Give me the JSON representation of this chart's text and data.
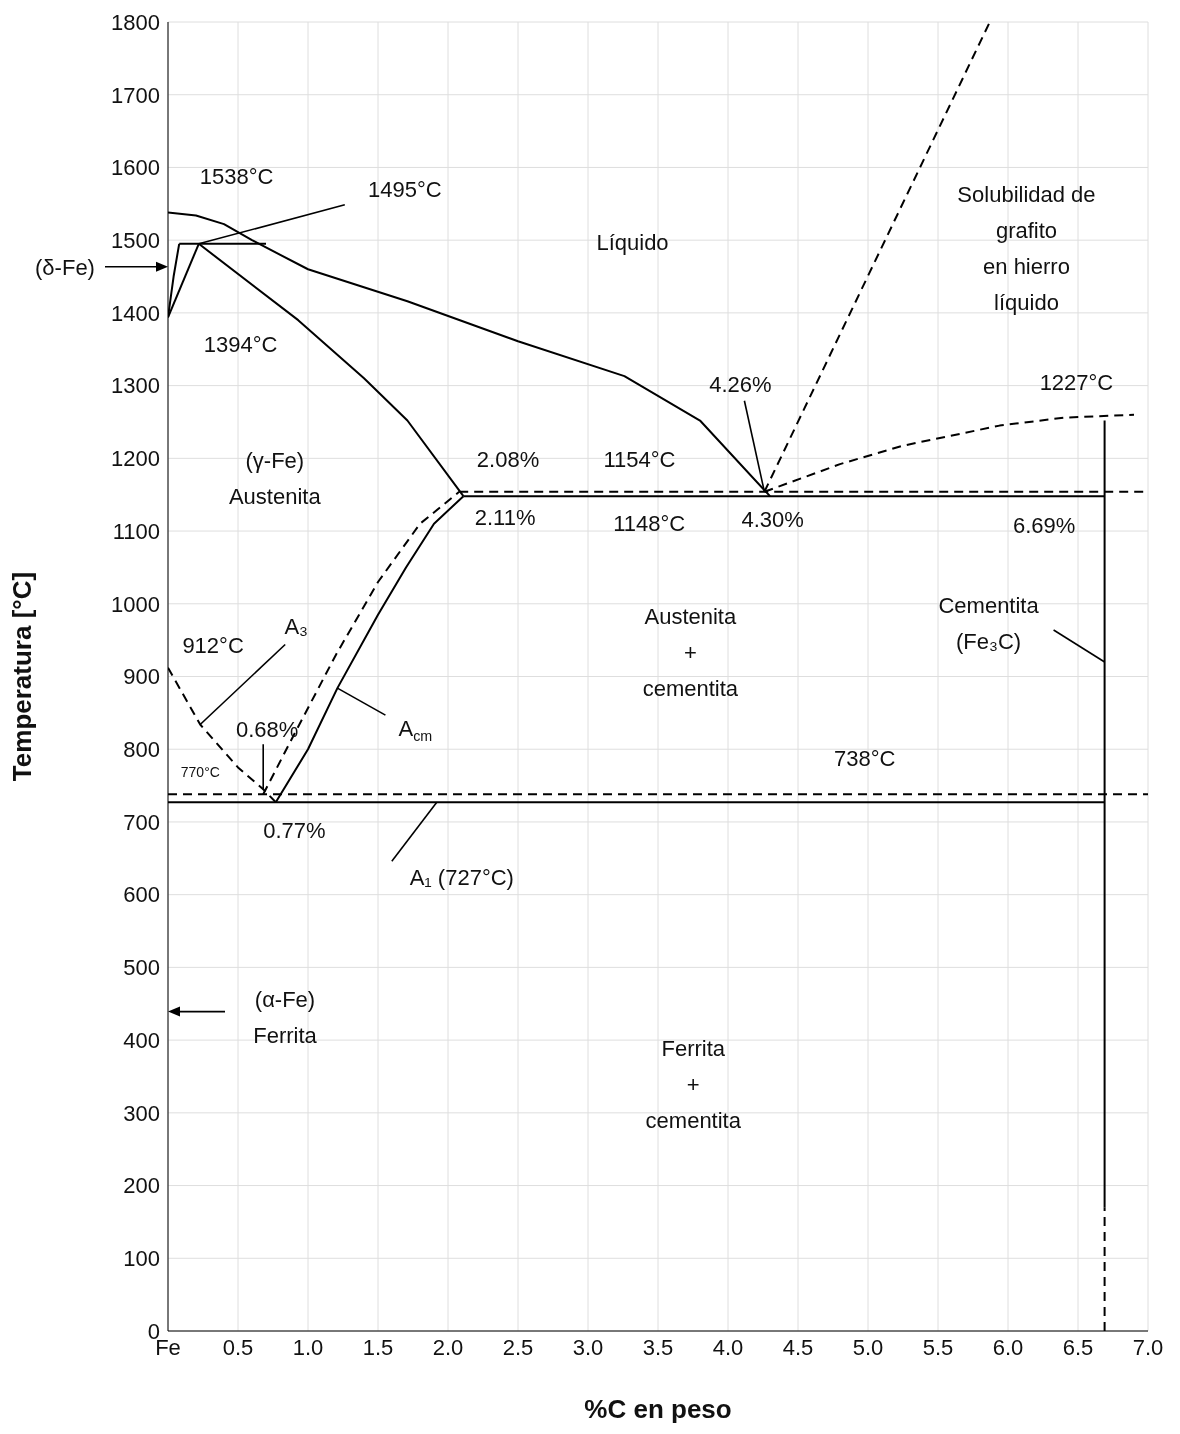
{
  "chart_data": {
    "type": "line",
    "xlabel": "%C en peso",
    "ylabel": "Temperatura [°C]",
    "xlim": [
      0,
      7
    ],
    "xticks": [
      {
        "value": 0,
        "label": "Fe"
      },
      0.5,
      {
        "value": 1,
        "label": "1.0"
      },
      1.5,
      {
        "value": 2,
        "label": "2.0"
      },
      2.5,
      {
        "value": 3,
        "label": "3.0"
      },
      3.5,
      {
        "value": 4,
        "label": "4.0"
      },
      4.5,
      {
        "value": 5,
        "label": "5.0"
      },
      5.5,
      {
        "value": 6,
        "label": "6.0"
      },
      6.5,
      {
        "value": 7,
        "label": "7.0"
      }
    ],
    "ylim": [
      0,
      1800
    ],
    "yticks": [
      0,
      100,
      200,
      300,
      400,
      500,
      600,
      700,
      800,
      900,
      1000,
      1100,
      1200,
      1300,
      1400,
      1500,
      1600,
      1700,
      1800
    ],
    "grid": true,
    "marker": "none",
    "series": [
      {
        "color": "#000000",
        "line_style": "solid",
        "x": [
          0,
          0.2,
          0.4,
          0.6,
          1.0,
          1.71,
          2.5,
          3.26,
          3.8,
          4.3
        ],
        "values": [
          1538,
          1534,
          1522,
          1500,
          1460,
          1416,
          1361,
          1313,
          1252,
          1148
        ]
      },
      {
        "color": "#000000",
        "line_style": "solid",
        "x": [
          0.08,
          0.7
        ],
        "values": [
          1495,
          1495
        ]
      },
      {
        "color": "#000000",
        "line_style": "solid",
        "x": [
          0,
          0.22
        ],
        "values": [
          1394,
          1495
        ]
      },
      {
        "color": "#000000",
        "line_style": "solid",
        "x": [
          0,
          0.04,
          0.08
        ],
        "values": [
          1394,
          1450,
          1495
        ]
      },
      {
        "color": "#000000",
        "line_style": "solid",
        "x": [
          0.22,
          0.93,
          1.4,
          1.71,
          2.11
        ],
        "values": [
          1495,
          1390,
          1310,
          1252,
          1148
        ]
      },
      {
        "color": "#000000",
        "line_style": "solid",
        "x": [
          2.11,
          6.69
        ],
        "values": [
          1148,
          1148
        ]
      },
      {
        "color": "#000000",
        "line_style": "dashed",
        "x": [
          2.08,
          7
        ],
        "values": [
          1154,
          1154
        ]
      },
      {
        "color": "#000000",
        "line_style": "solid",
        "x": [
          0.77,
          1.0,
          1.21,
          1.5,
          1.7,
          1.9,
          2.11
        ],
        "values": [
          727,
          800,
          884,
          985,
          1050,
          1110,
          1148
        ]
      },
      {
        "color": "#000000",
        "line_style": "dashed",
        "x": [
          0.68,
          0.9,
          1.2,
          1.5,
          1.8,
          2.08
        ],
        "values": [
          738,
          820,
          930,
          1030,
          1110,
          1154
        ]
      },
      {
        "color": "#000000",
        "line_style": "dashed",
        "x": [
          0,
          0.23,
          0.5,
          0.68,
          0.77
        ],
        "values": [
          912,
          834,
          775,
          745,
          727
        ]
      },
      {
        "color": "#000000",
        "line_style": "solid",
        "x": [
          0,
          6.69
        ],
        "values": [
          727,
          727
        ]
      },
      {
        "color": "#000000",
        "line_style": "dashed",
        "x": [
          0,
          7
        ],
        "values": [
          738,
          738
        ]
      },
      {
        "color": "#000000",
        "line_style": "solid",
        "x": [
          6.69,
          6.69
        ],
        "values": [
          170,
          1252
        ]
      },
      {
        "color": "#000000",
        "line_style": "dashed",
        "x": [
          6.69,
          6.69
        ],
        "values": [
          0,
          170
        ]
      },
      {
        "color": "#000000",
        "line_style": "dashed",
        "x": [
          4.26,
          5.87
        ],
        "values": [
          1154,
          1800
        ]
      },
      {
        "color": "#000000",
        "line_style": "dashed",
        "x": [
          4.26,
          4.8,
          5.24,
          5.94,
          6.4,
          6.9
        ],
        "values": [
          1154,
          1192,
          1217,
          1245,
          1256,
          1260
        ]
      }
    ],
    "annotations": [
      "1538°C",
      {
        "text": "1495°C",
        "x": 0.22,
        "y": 1495
      },
      "(δ-Fe)",
      "1394°C",
      "Líquido",
      "Solubilidad de\ngrafito\nen hierro\nlíquido",
      {
        "text": "4.26%",
        "x": 4.26,
        "y": 1154
      },
      "1227°C",
      "(γ-Fe)\nAustenita",
      "2.08%",
      "1154°C",
      "2.11%",
      "1148°C",
      "4.30%",
      "6.69%",
      "Austenita\n+\ncementita",
      {
        "text": "Cementita\n(Fe₃C)",
        "x": 6.69,
        "y": 920
      },
      "912°C",
      {
        "text": "A₃",
        "x": 0.23,
        "y": 834
      },
      {
        "text": "0.68%",
        "x": 0.68,
        "y": 745
      },
      "770°C",
      {
        "text": "A$_{cm}$",
        "x": 1.21,
        "y": 884
      },
      "738°C",
      "0.77%",
      {
        "text": "A₁ (727°C)",
        "x": 1.92,
        "y": 727
      },
      "(α-Fe)\nFerrita",
      "Ferrita\n+\ncementita"
    ]
  }
}
